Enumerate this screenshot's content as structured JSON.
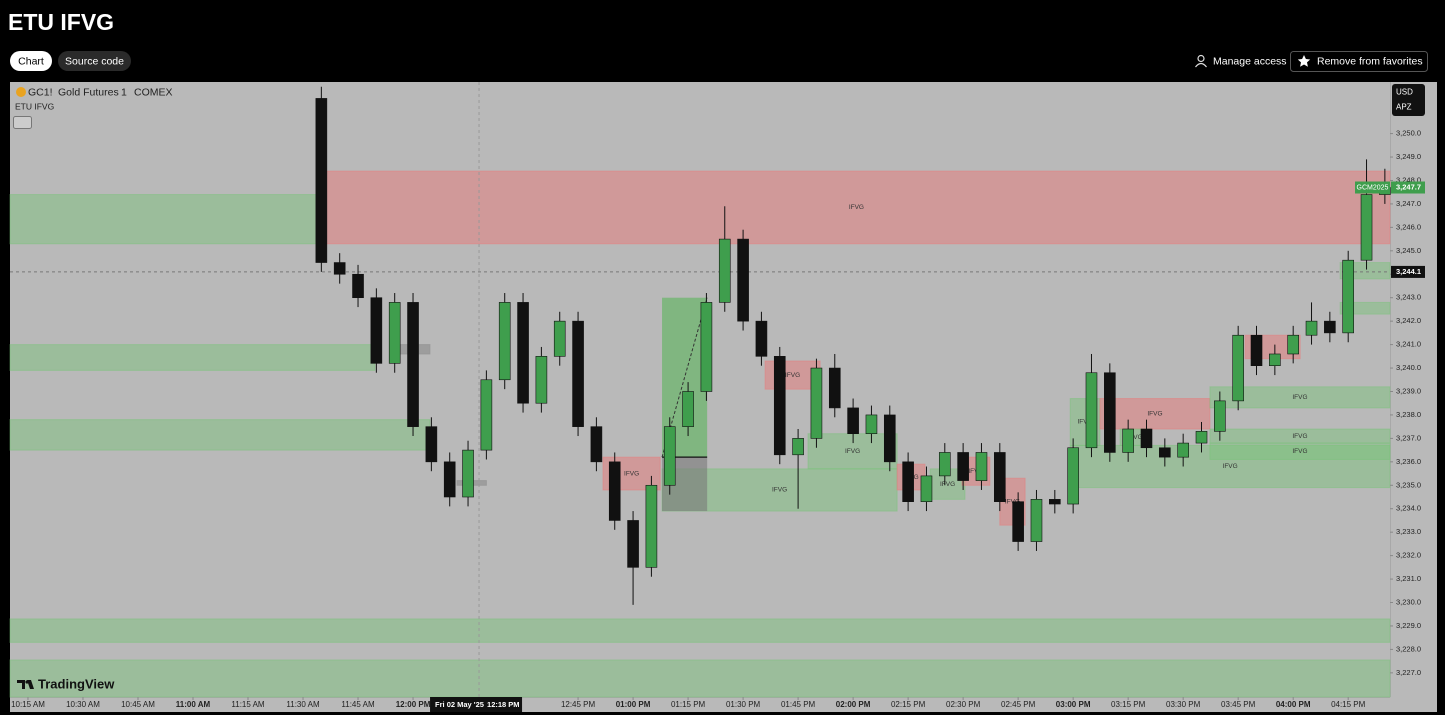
{
  "header": {
    "title": "ETU IFVG",
    "tabs": [
      "Chart",
      "Source code"
    ],
    "actions": [
      "Manage access",
      "Remove from favorites"
    ]
  },
  "chart_data": {
    "type": "candlestick",
    "symbol": "GC1!",
    "description": "Gold Futures",
    "interval": "1",
    "exchange": "COMEX",
    "indicator": "ETU IFVG",
    "currency": "USD",
    "unit": "APZ",
    "watermark": "TradingView",
    "up_color": "#3f9e4d",
    "down_color": "#111111",
    "zone_colors": {
      "red": "rgba(228,128,128,0.55)",
      "green": "rgba(120,196,120,0.45)",
      "grey": "rgba(150,150,150,0.8)"
    },
    "xlim": [
      -4.9,
      371.4
    ],
    "ylim": [
      3225.97,
      3252.2
    ],
    "yticks": [
      {
        "value": 3250,
        "label": "3,250.0"
      },
      {
        "value": 3249,
        "label": "3,249.0"
      },
      {
        "value": 3248,
        "label": "3,248.0"
      },
      {
        "value": 3247,
        "label": "3,247.0"
      },
      {
        "value": 3246,
        "label": "3,246.0"
      },
      {
        "value": 3245,
        "label": "3,245.0"
      },
      {
        "value": 3244,
        "label": "3,244.0"
      },
      {
        "value": 3243,
        "label": "3,243.0"
      },
      {
        "value": 3242,
        "label": "3,242.0"
      },
      {
        "value": 3241,
        "label": "3,241.0"
      },
      {
        "value": 3240,
        "label": "3,240.0"
      },
      {
        "value": 3239,
        "label": "3,239.0"
      },
      {
        "value": 3238,
        "label": "3,238.0"
      },
      {
        "value": 3237,
        "label": "3,237.0"
      },
      {
        "value": 3236,
        "label": "3,236.0"
      },
      {
        "value": 3235,
        "label": "3,235.0"
      },
      {
        "value": 3234,
        "label": "3,234.0"
      },
      {
        "value": 3233,
        "label": "3,233.0"
      },
      {
        "value": 3232,
        "label": "3,232.0"
      },
      {
        "value": 3231,
        "label": "3,231.0"
      },
      {
        "value": 3230,
        "label": "3,230.0"
      },
      {
        "value": 3229,
        "label": "3,229.0"
      },
      {
        "value": 3228,
        "label": "3,228.0"
      },
      {
        "value": 3227,
        "label": "3,227.0"
      }
    ],
    "xticks": [
      {
        "value": 0,
        "label": "10:15 AM"
      },
      {
        "value": 15,
        "label": "10:30 AM"
      },
      {
        "value": 30,
        "label": "10:45 AM"
      },
      {
        "value": 45,
        "label": "11:00 AM"
      },
      {
        "value": 60,
        "label": "11:15 AM"
      },
      {
        "value": 75,
        "label": "11:30 AM"
      },
      {
        "value": 90,
        "label": "11:45 AM"
      },
      {
        "value": 105,
        "label": "12:00 PM"
      },
      {
        "value": 150,
        "label": "12:45 PM"
      },
      {
        "value": 165,
        "label": "01:00 PM"
      },
      {
        "value": 180,
        "label": "01:15 PM"
      },
      {
        "value": 195,
        "label": "01:30 PM"
      },
      {
        "value": 210,
        "label": "01:45 PM"
      },
      {
        "value": 225,
        "label": "02:00 PM"
      },
      {
        "value": 240,
        "label": "02:15 PM"
      },
      {
        "value": 255,
        "label": "02:30 PM"
      },
      {
        "value": 270,
        "label": "02:45 PM"
      },
      {
        "value": 285,
        "label": "03:00 PM"
      },
      {
        "value": 300,
        "label": "03:15 PM"
      },
      {
        "value": 315,
        "label": "03:30 PM"
      },
      {
        "value": 330,
        "label": "03:45 PM"
      },
      {
        "value": 345,
        "label": "04:00 PM"
      },
      {
        "value": 360,
        "label": "04:15 PM"
      }
    ],
    "t": [
      80,
      85,
      90,
      95,
      100,
      105,
      110,
      115,
      120,
      125,
      130,
      135,
      140,
      145,
      150,
      155,
      160,
      165,
      170,
      175,
      180,
      185,
      190,
      195,
      200,
      205,
      210,
      215,
      220,
      225,
      230,
      235,
      240,
      245,
      250,
      255,
      260,
      265,
      270,
      275,
      280,
      285,
      290,
      295,
      300,
      305,
      310,
      315,
      320,
      325,
      330,
      335,
      340,
      345,
      350,
      355,
      360,
      365,
      370
    ],
    "open": [
      3251.5,
      3244.5,
      3244.0,
      3243.0,
      3240.2,
      3242.8,
      3237.5,
      3236.0,
      3234.5,
      3236.5,
      3239.5,
      3242.8,
      3238.5,
      3240.5,
      3242.0,
      3237.5,
      3236.0,
      3233.5,
      3231.5,
      3235.0,
      3237.5,
      3239.0,
      3242.8,
      3245.5,
      3242.0,
      3240.5,
      3236.3,
      3237.0,
      3240.0,
      3238.3,
      3237.2,
      3238.0,
      3236.0,
      3234.3,
      3235.4,
      3236.4,
      3235.2,
      3236.4,
      3234.3,
      3232.6,
      3234.4,
      3234.2,
      3236.6,
      3239.8,
      3236.4,
      3237.4,
      3236.6,
      3236.2,
      3236.8,
      3237.3,
      3238.6,
      3241.4,
      3240.1,
      3240.6,
      3241.4,
      3242.0,
      3241.5,
      3244.6,
      3247.4
    ],
    "high": [
      3252.0,
      3244.9,
      3244.4,
      3243.4,
      3243.2,
      3243.2,
      3237.9,
      3236.4,
      3236.9,
      3239.9,
      3243.2,
      3243.2,
      3240.9,
      3242.4,
      3242.4,
      3237.9,
      3236.4,
      3233.9,
      3235.4,
      3237.9,
      3239.4,
      3243.2,
      3246.9,
      3245.9,
      3242.4,
      3240.9,
      3237.4,
      3240.4,
      3240.6,
      3238.7,
      3238.4,
      3238.4,
      3236.4,
      3235.8,
      3236.8,
      3236.8,
      3236.8,
      3236.8,
      3234.7,
      3234.8,
      3234.8,
      3237.0,
      3240.6,
      3240.2,
      3237.8,
      3237.8,
      3237.0,
      3237.2,
      3237.7,
      3239.0,
      3241.8,
      3241.8,
      3241.0,
      3241.8,
      3242.8,
      3242.4,
      3245.0,
      3248.9,
      3248.5
    ],
    "low": [
      3244.1,
      3243.6,
      3242.6,
      3239.8,
      3239.8,
      3237.1,
      3235.6,
      3234.1,
      3234.1,
      3236.1,
      3239.1,
      3238.1,
      3238.1,
      3240.1,
      3237.1,
      3235.6,
      3233.1,
      3229.9,
      3231.1,
      3234.6,
      3237.1,
      3238.6,
      3242.4,
      3241.6,
      3240.1,
      3235.9,
      3234.0,
      3236.6,
      3237.9,
      3236.8,
      3236.8,
      3235.6,
      3233.9,
      3233.9,
      3235.0,
      3234.8,
      3234.8,
      3233.9,
      3232.2,
      3232.2,
      3233.8,
      3233.8,
      3236.2,
      3236.0,
      3236.0,
      3236.2,
      3235.8,
      3235.8,
      3236.4,
      3236.9,
      3238.2,
      3239.7,
      3239.7,
      3240.2,
      3241.0,
      3241.1,
      3241.1,
      3244.2,
      3247.0
    ],
    "close": [
      3244.5,
      3244.0,
      3243.0,
      3240.2,
      3242.8,
      3237.5,
      3236.0,
      3234.5,
      3236.5,
      3239.5,
      3242.8,
      3238.5,
      3240.5,
      3242.0,
      3237.5,
      3236.0,
      3233.5,
      3231.5,
      3235.0,
      3237.5,
      3239.0,
      3242.8,
      3245.5,
      3242.0,
      3240.5,
      3236.3,
      3237.0,
      3240.0,
      3238.3,
      3237.2,
      3238.0,
      3236.0,
      3234.3,
      3235.4,
      3236.4,
      3235.2,
      3236.4,
      3234.3,
      3232.6,
      3234.4,
      3234.2,
      3236.6,
      3239.8,
      3236.4,
      3237.4,
      3236.6,
      3236.2,
      3236.8,
      3237.3,
      3238.6,
      3241.4,
      3240.1,
      3240.6,
      3241.4,
      3242.0,
      3241.5,
      3244.6,
      3247.4,
      3247.7
    ],
    "zones": [
      {
        "kind": "green",
        "x": [
          -4.9,
          80.4
        ],
        "y": [
          3245.3,
          3247.4
        ]
      },
      {
        "kind": "red",
        "x": [
          80.4,
          371.4
        ],
        "y": [
          3245.3,
          3248.4
        ],
        "label": "IFVG"
      },
      {
        "kind": "green",
        "x": [
          -4.9,
          94.6
        ],
        "y": [
          3239.9,
          3241.0
        ]
      },
      {
        "kind": "green",
        "x": [
          -4.9,
          109.6
        ],
        "y": [
          3236.5,
          3237.8
        ]
      },
      {
        "kind": "grey",
        "x": [
          101,
          109.6
        ],
        "y": [
          3240.6,
          3241.0
        ]
      },
      {
        "kind": "grey",
        "x": [
          117,
          125
        ],
        "y": [
          3235.0,
          3235.2
        ]
      },
      {
        "kind": "green",
        "x": [
          -4.9,
          371.4
        ],
        "y": [
          3228.3,
          3229.3
        ]
      },
      {
        "kind": "green",
        "x": [
          -4.9,
          371.4
        ],
        "y": [
          3225.97,
          3227.55
        ]
      },
      {
        "kind": "red",
        "x": [
          156.8,
          172.4
        ],
        "y": [
          3234.8,
          3236.2
        ],
        "label": "IFVG"
      },
      {
        "kind": "green",
        "x": [
          172.9,
          237
        ],
        "y": [
          3233.9,
          3235.7
        ],
        "label": "IFVG"
      },
      {
        "kind": "red",
        "x": [
          201,
          216
        ],
        "y": [
          3239.1,
          3240.3
        ],
        "label": "IFVG"
      },
      {
        "kind": "green",
        "x": [
          212.7,
          237
        ],
        "y": [
          3235.7,
          3237.2
        ],
        "label": "IFVG"
      },
      {
        "kind": "red",
        "x": [
          237,
          244.6
        ],
        "y": [
          3234.8,
          3235.9
        ],
        "label": "IFVG"
      },
      {
        "kind": "green",
        "x": [
          246,
          255.5
        ],
        "y": [
          3234.4,
          3235.7
        ],
        "label": "IFVG"
      },
      {
        "kind": "red",
        "x": [
          254.7,
          262.3
        ],
        "y": [
          3235.0,
          3236.2
        ],
        "label": "IFVG"
      },
      {
        "kind": "red",
        "x": [
          265,
          271.9
        ],
        "y": [
          3233.3,
          3235.3
        ],
        "label": "IFVG"
      },
      {
        "kind": "green",
        "x": [
          284.2,
          371.4
        ],
        "y": [
          3234.9,
          3236.7
        ],
        "label": "IFVG"
      },
      {
        "kind": "green",
        "x": [
          284.2,
          292.3
        ],
        "y": [
          3236.7,
          3238.7
        ],
        "label": "IFVG"
      },
      {
        "kind": "red",
        "x": [
          292.3,
          322.3
        ],
        "y": [
          3237.4,
          3238.7
        ],
        "label": "IFVG"
      },
      {
        "kind": "green",
        "x": [
          297.8,
          306
        ],
        "y": [
          3236.7,
          3237.4
        ],
        "label": "IFVG"
      },
      {
        "kind": "green",
        "x": [
          322.3,
          371.4
        ],
        "y": [
          3238.3,
          3239.2
        ],
        "label": "IFVG"
      },
      {
        "kind": "green",
        "x": [
          322.3,
          371.4
        ],
        "y": [
          3236.8,
          3237.4
        ],
        "label": "IFVG"
      },
      {
        "kind": "green",
        "x": [
          322.3,
          371.4
        ],
        "y": [
          3236.1,
          3236.8
        ],
        "label": "IFVG"
      },
      {
        "kind": "red",
        "x": [
          331.9,
          346.9
        ],
        "y": [
          3240.4,
          3241.4
        ]
      },
      {
        "kind": "green",
        "x": [
          357.8,
          371.4
        ],
        "y": [
          3243.8,
          3244.5
        ]
      },
      {
        "kind": "green",
        "x": [
          357.8,
          371.4
        ],
        "y": [
          3242.3,
          3242.8
        ]
      }
    ],
    "position": {
      "x": [
        172.9,
        185.2
      ],
      "entry": 3236.2,
      "target": 3243.0,
      "stop": 3233.9
    },
    "last_price": {
      "name": "GCM2025",
      "value": 3247.7,
      "label": "3,247.7"
    },
    "crosshair": {
      "value": 3244.1,
      "label": "3,244.1",
      "time": 123,
      "date_label": "Fri 02 May '25",
      "time_label": "12:18 PM"
    }
  }
}
